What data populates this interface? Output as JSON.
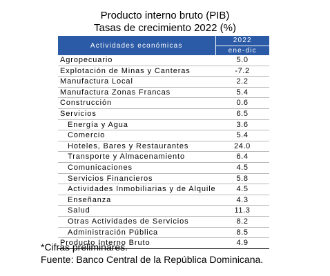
{
  "title": {
    "line1": "Producto interno bruto (PIB)",
    "line2": "Tasas de crecimiento 2022 (%)"
  },
  "table": {
    "header": {
      "activities": "Actividades económicas",
      "year": "2022",
      "period": "ene-dic"
    },
    "rows": [
      {
        "name": "Agropecuario",
        "value": "5.0",
        "indent": false
      },
      {
        "name": "Explotación de Minas y Canteras",
        "value": "-7.2",
        "indent": false
      },
      {
        "name": "Manufactura Local",
        "value": "2.2",
        "indent": false
      },
      {
        "name": "Manufactura Zonas Francas",
        "value": "5.4",
        "indent": false
      },
      {
        "name": "Construcción",
        "value": "0.6",
        "indent": false
      },
      {
        "name": "Servicios",
        "value": "6.5",
        "indent": false
      },
      {
        "name": "Energía y Agua",
        "value": "3.6",
        "indent": true
      },
      {
        "name": "Comercio",
        "value": "5.4",
        "indent": true
      },
      {
        "name": "Hoteles, Bares y Restaurantes",
        "value": "24.0",
        "indent": true
      },
      {
        "name": "Transporte y Almacenamiento",
        "value": "6.4",
        "indent": true
      },
      {
        "name": "Comunicaciones",
        "value": "4.5",
        "indent": true
      },
      {
        "name": "Servicios Financieros",
        "value": "5.8",
        "indent": true
      },
      {
        "name": "Actividades Inmobiliarias y de Alquiler",
        "value": "4.5",
        "indent": true
      },
      {
        "name": "Enseñanza",
        "value": "4.3",
        "indent": true
      },
      {
        "name": "Salud",
        "value": "11.3",
        "indent": true
      },
      {
        "name": "Otras Actividades de Servicios",
        "value": "8.2",
        "indent": true
      },
      {
        "name": "Administración Pública",
        "value": "8.5",
        "indent": true
      },
      {
        "name": "Producto Interno Bruto",
        "value": "4.9",
        "indent": false
      }
    ]
  },
  "notes": {
    "preliminary": "*Cifras preliminares.",
    "source": "Fuente: Banco Central de la República Dominicana."
  },
  "colors": {
    "header_background": "#2b5aa6",
    "header_text": "#ffffff"
  }
}
